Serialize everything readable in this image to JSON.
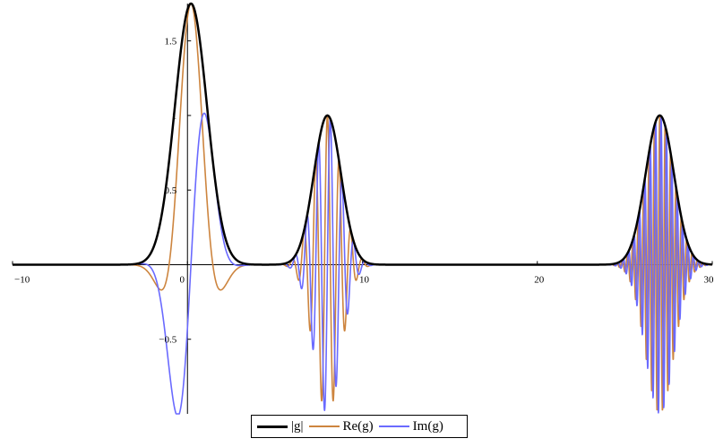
{
  "chart_data": {
    "type": "line",
    "title": "",
    "xlabel": "",
    "ylabel": "",
    "xlim": [
      -10,
      30
    ],
    "ylim": [
      -1.0,
      1.75
    ],
    "x_ticks": [
      -10,
      0,
      10,
      20,
      30
    ],
    "x_tick_labels": [
      "−10",
      "0",
      "10",
      "20",
      "30"
    ],
    "y_ticks": [
      -0.5,
      0.5,
      1,
      1.5
    ],
    "y_tick_labels": [
      "−0.5",
      "0.5",
      "1",
      "1.5"
    ],
    "grid": false,
    "legend_position": "bottom-center",
    "series": [
      {
        "name": "|g|",
        "color": "#000000",
        "components": [
          {
            "center": 0.2,
            "amplitude": 1.75,
            "width": 1.3
          },
          {
            "center": 8.0,
            "amplitude": 1.0,
            "width": 1.1
          },
          {
            "center": 27.0,
            "amplitude": 1.0,
            "width": 1.15
          }
        ]
      },
      {
        "name": "Re(g)",
        "color": "#cd853f",
        "components": [
          {
            "center": 0.2,
            "amplitude": 1.75,
            "width": 1.3,
            "frequency": 0.4,
            "phase": 0
          },
          {
            "center": 8.0,
            "amplitude": 1.0,
            "width": 1.1,
            "frequency": 3.0,
            "phase": 0
          },
          {
            "center": 27.0,
            "amplitude": 1.0,
            "width": 1.15,
            "frequency": 6.5,
            "phase": 0
          }
        ]
      },
      {
        "name": "Im(g)",
        "color": "#6a6aff",
        "components": [
          {
            "center": 0.2,
            "amplitude": 1.75,
            "width": 1.3,
            "frequency": 0.4,
            "phase": 0
          },
          {
            "center": 8.0,
            "amplitude": 1.0,
            "width": 1.1,
            "frequency": 3.0,
            "phase": 0
          },
          {
            "center": 27.0,
            "amplitude": 1.0,
            "width": 1.15,
            "frequency": 6.5,
            "phase": 0
          }
        ]
      }
    ]
  },
  "legend": {
    "items": [
      {
        "label": "|g|",
        "color": "#000000"
      },
      {
        "label": "Re(g)",
        "color": "#cd853f"
      },
      {
        "label": "Im(g)",
        "color": "#6a6aff"
      }
    ]
  }
}
